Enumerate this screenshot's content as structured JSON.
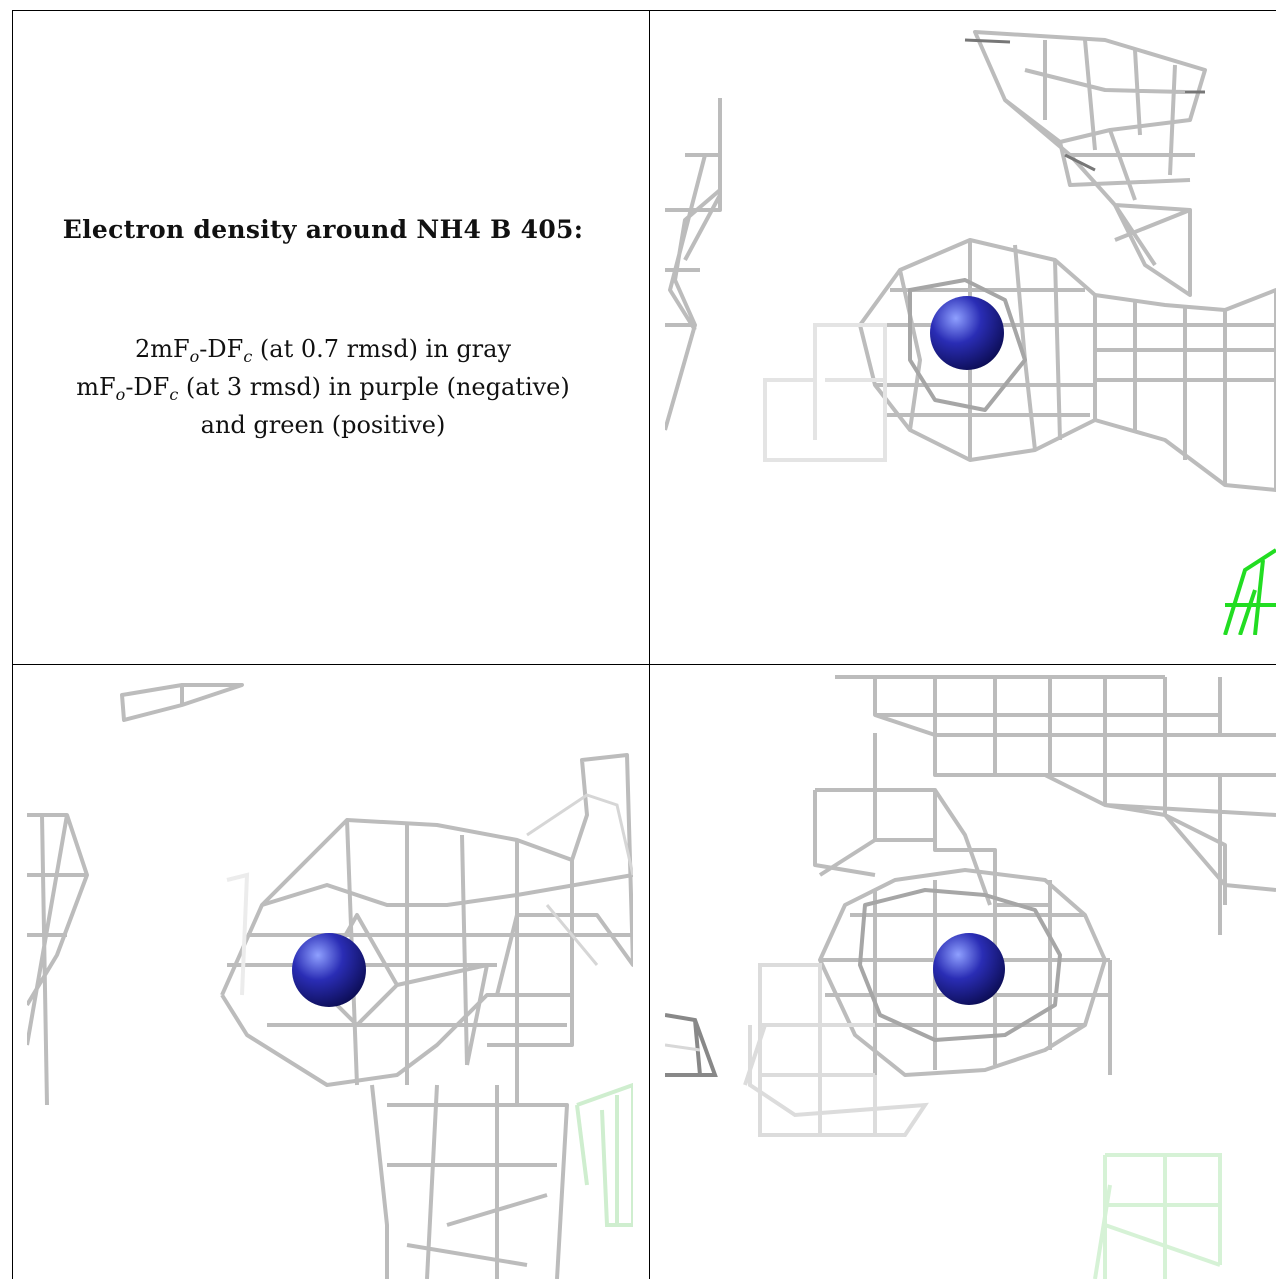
{
  "caption": {
    "title": "Electron density around NH4 B 405:",
    "line1": {
      "a": "2mF",
      "sub1": "o",
      "b": "-DF",
      "sub2": "c",
      "c": " (at 0.7 rmsd) in gray"
    },
    "line2": {
      "a": "mF",
      "sub1": "o",
      "b": "-DF",
      "sub2": "c",
      "c": " (at 3 rmsd) in purple (negative)"
    },
    "line3": "and green (positive)"
  },
  "colors": {
    "map_2fofc": "#b9b9b9",
    "map_fofc_positive": "#22dd22",
    "map_fofc_negative": "#8a2be2",
    "ammonium_sphere": "#2a2db5"
  },
  "panels": [
    "view-top-right",
    "view-bottom-left",
    "view-bottom-right"
  ]
}
